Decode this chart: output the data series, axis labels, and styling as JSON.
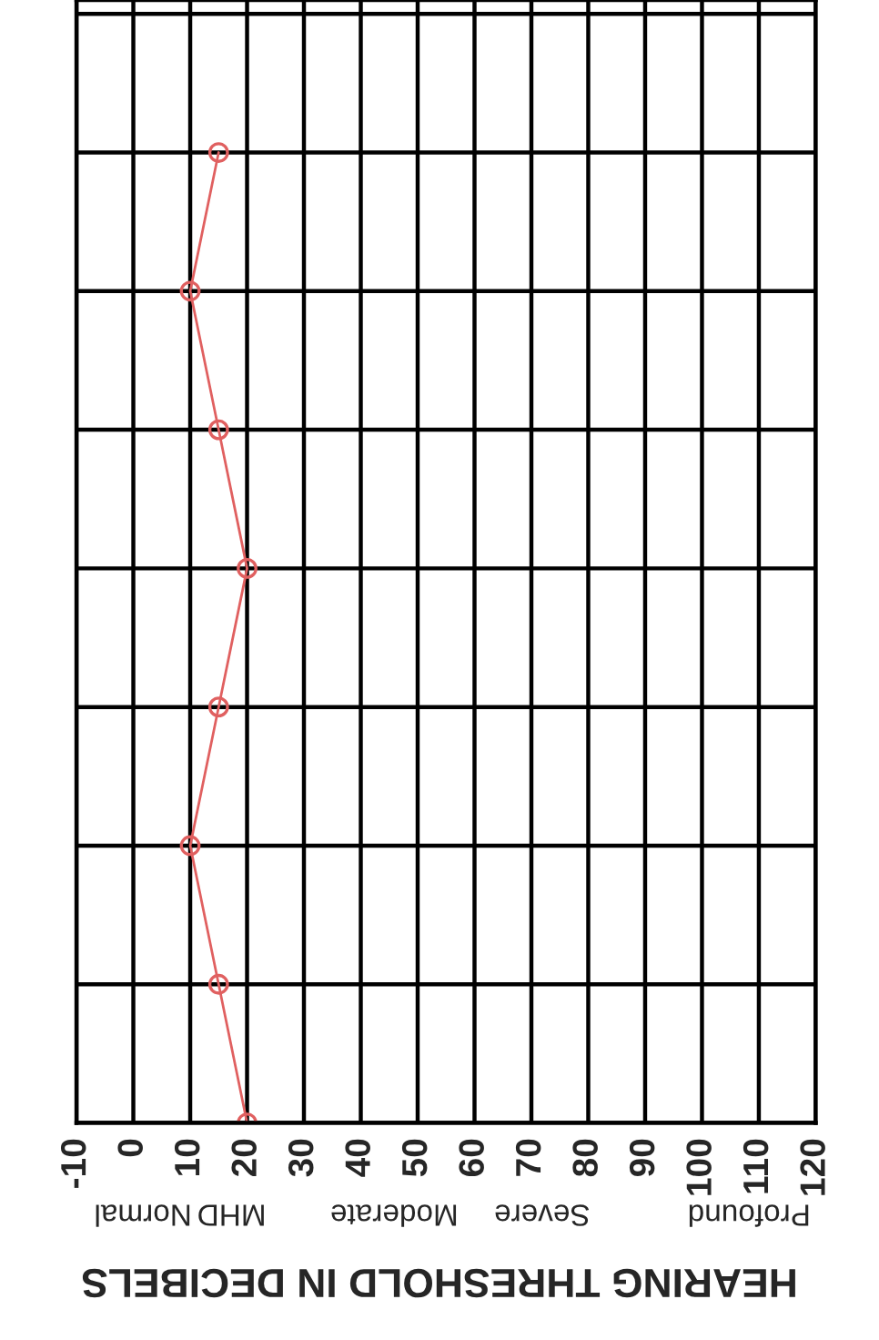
{
  "chart_data": {
    "type": "line",
    "orientation": "horizontal",
    "xlabel": "HEARING THRESHOLD IN DECIBELS",
    "categories": [
      null,
      null,
      null,
      null,
      null,
      null,
      null,
      null,
      null
    ],
    "series": [
      {
        "color": "#e06060",
        "values": [
          null,
          15,
          10,
          15,
          20,
          15,
          10,
          15,
          20
        ]
      }
    ],
    "xlim": [
      -10,
      120
    ],
    "xticks": [
      -10,
      0,
      10,
      20,
      30,
      40,
      50,
      60,
      70,
      80,
      90,
      100,
      110,
      120
    ],
    "tick_labels": "x",
    "grid": true,
    "marker": "circle",
    "line_style": "solid",
    "annotations": [
      "Normal",
      "MHD",
      "Moderate",
      "Severe",
      "Profound"
    ]
  }
}
